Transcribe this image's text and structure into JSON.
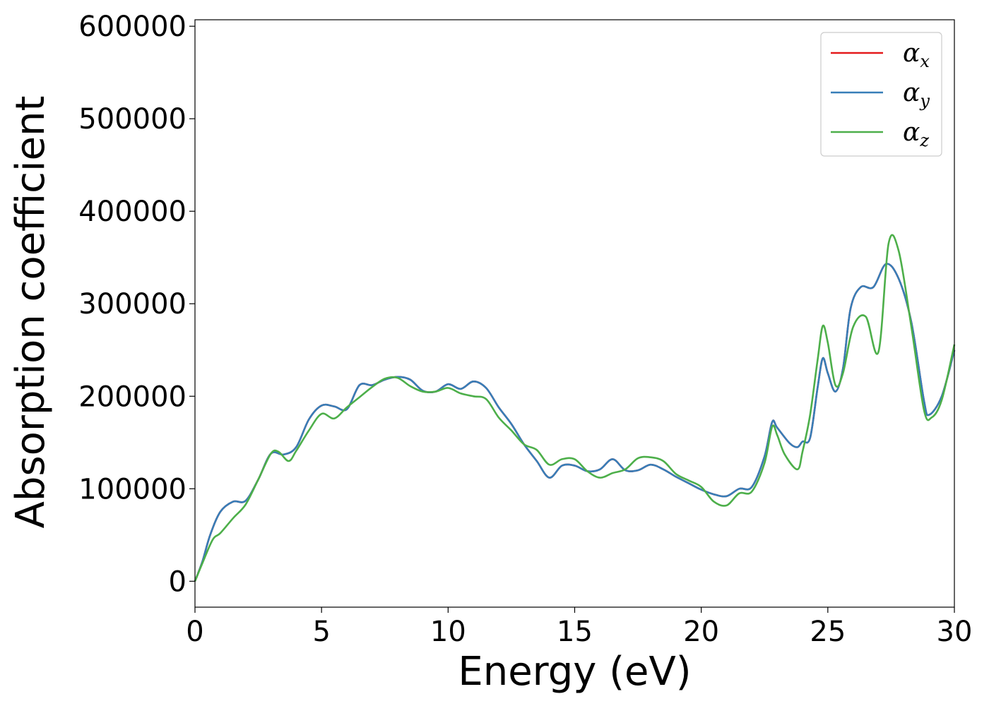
{
  "chart_data": {
    "type": "line",
    "title": "",
    "xlabel": "Energy (eV)",
    "ylabel": "Absorption coefficient",
    "xlim": [
      0,
      30
    ],
    "ylim": [
      -28000,
      607000
    ],
    "xticks": [
      0,
      5,
      10,
      15,
      20,
      25,
      30
    ],
    "xtick_labels": [
      "0",
      "5",
      "10",
      "15",
      "20",
      "25",
      "30"
    ],
    "yticks": [
      0,
      100000,
      200000,
      300000,
      400000,
      500000,
      600000
    ],
    "ytick_labels": [
      "0",
      "100000",
      "200000",
      "300000",
      "400000",
      "500000",
      "600000"
    ],
    "grid": false,
    "legend_position": "top-right",
    "series": [
      {
        "name": "α",
        "sub": "x",
        "color": "#e41a1c",
        "points": [
          [
            0,
            0
          ],
          [
            0.3,
            22000
          ],
          [
            0.6,
            50000
          ],
          [
            1,
            75000
          ],
          [
            1.5,
            86000
          ],
          [
            2,
            87000
          ],
          [
            2.5,
            110000
          ],
          [
            3,
            138000
          ],
          [
            3.5,
            137000
          ],
          [
            4,
            145000
          ],
          [
            4.5,
            175000
          ],
          [
            5,
            190000
          ],
          [
            5.5,
            189000
          ],
          [
            6,
            186000
          ],
          [
            6.5,
            212000
          ],
          [
            7,
            212000
          ],
          [
            7.5,
            218000
          ],
          [
            8,
            221000
          ],
          [
            8.5,
            218000
          ],
          [
            9,
            206000
          ],
          [
            9.5,
            205000
          ],
          [
            10,
            213000
          ],
          [
            10.5,
            208000
          ],
          [
            11,
            216000
          ],
          [
            11.5,
            209000
          ],
          [
            12,
            188000
          ],
          [
            12.5,
            170000
          ],
          [
            13,
            148000
          ],
          [
            13.5,
            130000
          ],
          [
            14,
            112000
          ],
          [
            14.5,
            125000
          ],
          [
            15,
            125000
          ],
          [
            15.5,
            119000
          ],
          [
            16,
            121000
          ],
          [
            16.5,
            132000
          ],
          [
            17,
            120000
          ],
          [
            17.5,
            120000
          ],
          [
            18,
            126000
          ],
          [
            18.5,
            121000
          ],
          [
            19,
            113000
          ],
          [
            19.5,
            106000
          ],
          [
            20,
            99000
          ],
          [
            20.5,
            94000
          ],
          [
            21,
            92000
          ],
          [
            21.5,
            100000
          ],
          [
            22,
            102000
          ],
          [
            22.5,
            135000
          ],
          [
            22.8,
            172000
          ],
          [
            23,
            166000
          ],
          [
            23.5,
            149000
          ],
          [
            23.8,
            145000
          ],
          [
            24,
            151000
          ],
          [
            24.3,
            155000
          ],
          [
            24.6,
            210000
          ],
          [
            24.8,
            241000
          ],
          [
            25,
            225000
          ],
          [
            25.3,
            205000
          ],
          [
            25.6,
            230000
          ],
          [
            25.9,
            295000
          ],
          [
            26.3,
            318000
          ],
          [
            26.8,
            318000
          ],
          [
            27.3,
            343000
          ],
          [
            27.8,
            327000
          ],
          [
            28.3,
            280000
          ],
          [
            28.8,
            195000
          ],
          [
            29,
            180000
          ],
          [
            29.5,
            200000
          ],
          [
            30,
            250000
          ]
        ]
      },
      {
        "name": "α",
        "sub": "y",
        "color": "#377eb8",
        "points": [
          [
            0,
            0
          ],
          [
            0.3,
            22000
          ],
          [
            0.6,
            50000
          ],
          [
            1,
            75000
          ],
          [
            1.5,
            86000
          ],
          [
            2,
            87000
          ],
          [
            2.5,
            110000
          ],
          [
            3,
            138000
          ],
          [
            3.5,
            137000
          ],
          [
            4,
            145000
          ],
          [
            4.5,
            175000
          ],
          [
            5,
            190000
          ],
          [
            5.5,
            189000
          ],
          [
            6,
            186000
          ],
          [
            6.5,
            212000
          ],
          [
            7,
            212000
          ],
          [
            7.5,
            218000
          ],
          [
            8,
            221000
          ],
          [
            8.5,
            218000
          ],
          [
            9,
            206000
          ],
          [
            9.5,
            205000
          ],
          [
            10,
            213000
          ],
          [
            10.5,
            208000
          ],
          [
            11,
            216000
          ],
          [
            11.5,
            209000
          ],
          [
            12,
            188000
          ],
          [
            12.5,
            170000
          ],
          [
            13,
            148000
          ],
          [
            13.5,
            130000
          ],
          [
            14,
            112000
          ],
          [
            14.5,
            125000
          ],
          [
            15,
            125000
          ],
          [
            15.5,
            119000
          ],
          [
            16,
            121000
          ],
          [
            16.5,
            132000
          ],
          [
            17,
            120000
          ],
          [
            17.5,
            120000
          ],
          [
            18,
            126000
          ],
          [
            18.5,
            121000
          ],
          [
            19,
            113000
          ],
          [
            19.5,
            106000
          ],
          [
            20,
            99000
          ],
          [
            20.5,
            94000
          ],
          [
            21,
            92000
          ],
          [
            21.5,
            100000
          ],
          [
            22,
            102000
          ],
          [
            22.5,
            135000
          ],
          [
            22.8,
            172000
          ],
          [
            23,
            166000
          ],
          [
            23.5,
            149000
          ],
          [
            23.8,
            145000
          ],
          [
            24,
            151000
          ],
          [
            24.3,
            155000
          ],
          [
            24.6,
            210000
          ],
          [
            24.8,
            241000
          ],
          [
            25,
            225000
          ],
          [
            25.3,
            205000
          ],
          [
            25.6,
            230000
          ],
          [
            25.9,
            295000
          ],
          [
            26.3,
            318000
          ],
          [
            26.8,
            318000
          ],
          [
            27.3,
            343000
          ],
          [
            27.8,
            327000
          ],
          [
            28.3,
            280000
          ],
          [
            28.8,
            195000
          ],
          [
            29,
            180000
          ],
          [
            29.5,
            200000
          ],
          [
            30,
            250000
          ]
        ]
      },
      {
        "name": "α",
        "sub": "z",
        "color": "#4daf4a",
        "points": [
          [
            0,
            0
          ],
          [
            0.3,
            20000
          ],
          [
            0.7,
            45000
          ],
          [
            1,
            52000
          ],
          [
            1.5,
            68000
          ],
          [
            2,
            83000
          ],
          [
            2.5,
            110000
          ],
          [
            3,
            138000
          ],
          [
            3.3,
            140000
          ],
          [
            3.7,
            130000
          ],
          [
            4,
            141000
          ],
          [
            4.5,
            163000
          ],
          [
            5,
            181000
          ],
          [
            5.5,
            176000
          ],
          [
            6,
            188000
          ],
          [
            6.5,
            199000
          ],
          [
            7,
            210000
          ],
          [
            7.5,
            219000
          ],
          [
            8,
            220000
          ],
          [
            8.5,
            211000
          ],
          [
            9,
            205000
          ],
          [
            9.5,
            205000
          ],
          [
            10,
            209000
          ],
          [
            10.5,
            203000
          ],
          [
            11,
            200000
          ],
          [
            11.5,
            197000
          ],
          [
            12,
            177000
          ],
          [
            12.5,
            163000
          ],
          [
            13,
            148000
          ],
          [
            13.5,
            142000
          ],
          [
            14,
            126000
          ],
          [
            14.5,
            132000
          ],
          [
            15,
            132000
          ],
          [
            15.5,
            119000
          ],
          [
            16,
            112000
          ],
          [
            16.5,
            117000
          ],
          [
            17,
            121000
          ],
          [
            17.5,
            133000
          ],
          [
            18,
            134000
          ],
          [
            18.5,
            130000
          ],
          [
            19,
            116000
          ],
          [
            19.5,
            109000
          ],
          [
            20,
            102000
          ],
          [
            20.5,
            86000
          ],
          [
            21,
            82000
          ],
          [
            21.5,
            95000
          ],
          [
            22,
            97000
          ],
          [
            22.5,
            128000
          ],
          [
            22.8,
            167000
          ],
          [
            23,
            158000
          ],
          [
            23.3,
            137000
          ],
          [
            23.8,
            121000
          ],
          [
            24,
            140000
          ],
          [
            24.3,
            180000
          ],
          [
            24.6,
            240000
          ],
          [
            24.8,
            276000
          ],
          [
            25,
            258000
          ],
          [
            25.3,
            212000
          ],
          [
            25.6,
            225000
          ],
          [
            26,
            275000
          ],
          [
            26.5,
            286000
          ],
          [
            27,
            248000
          ],
          [
            27.4,
            365000
          ],
          [
            27.8,
            357000
          ],
          [
            28.3,
            275000
          ],
          [
            28.8,
            185000
          ],
          [
            29.1,
            177000
          ],
          [
            29.5,
            196000
          ],
          [
            30,
            256000
          ]
        ]
      }
    ]
  }
}
